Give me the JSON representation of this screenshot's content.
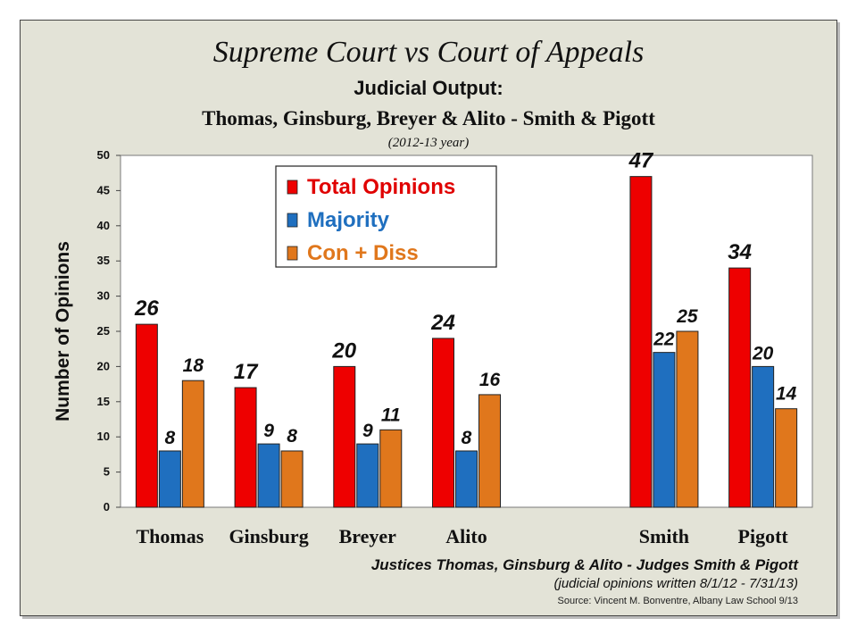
{
  "titles": {
    "main": "Supreme Court vs Court of Appeals",
    "sub1": "Judicial Output:",
    "sub2": "Thomas, Ginsburg, Breyer & Alito - Smith & Pigott",
    "sub3": "(2012-13 year)"
  },
  "footer": {
    "line1": "Justices Thomas, Ginsburg & Alito - Judges Smith & Pigott",
    "line2": "(judicial opinions written 8/1/12 - 7/31/13)",
    "line3": "Source: Vincent M. Bonventre, Albany Law School 9/13"
  },
  "chart_data": {
    "type": "bar",
    "ylabel": "Number of Opinions",
    "ylim": [
      0,
      50
    ],
    "yticks": [
      0,
      5,
      10,
      15,
      20,
      25,
      30,
      35,
      40,
      45,
      50
    ],
    "grid": false,
    "legend_position": "top-left",
    "slots": [
      "Thomas",
      "Ginsburg",
      "Breyer",
      "Alito",
      "",
      "Smith",
      "Pigott"
    ],
    "categories": [
      "Thomas",
      "Ginsburg",
      "Breyer",
      "Alito",
      "Smith",
      "Pigott"
    ],
    "series": [
      {
        "name": "Total Opinions",
        "color": "#ee0000",
        "label_color": "#e00000",
        "values": [
          26,
          17,
          20,
          24,
          47,
          34
        ]
      },
      {
        "name": "Majority",
        "color": "#1f6fbf",
        "label_color": "#1f6fbf",
        "values": [
          8,
          9,
          9,
          8,
          22,
          20
        ]
      },
      {
        "name": "Con + Diss",
        "color": "#e0771c",
        "label_color": "#e0771c",
        "values": [
          18,
          8,
          11,
          16,
          25,
          14
        ]
      }
    ]
  }
}
